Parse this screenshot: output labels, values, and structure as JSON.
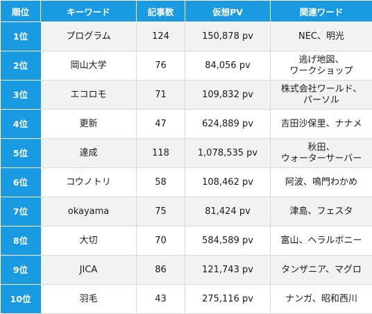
{
  "header": {
    "rank": "順位",
    "keyword": "キーワード",
    "count": "記事数",
    "pv": "仮想PV",
    "related": "関連ワード"
  },
  "rows": [
    {
      "rank": "1位",
      "keyword": "プログラム",
      "count": "124",
      "pv": "150,878 pv",
      "related": "NEC、明光"
    },
    {
      "rank": "2位",
      "keyword": "岡山大学",
      "count": "76",
      "pv": "84,056 pv",
      "related": "逃げ地図、\nワークショップ"
    },
    {
      "rank": "3位",
      "keyword": "エコロモ",
      "count": "71",
      "pv": "109,832 pv",
      "related": "株式会社ワールド、\nパーソル"
    },
    {
      "rank": "4位",
      "keyword": "更新",
      "count": "47",
      "pv": "624,889 pv",
      "related": "吉田沙保里、ナナメ"
    },
    {
      "rank": "5位",
      "keyword": "達成",
      "count": "118",
      "pv": "1,078,535 pv",
      "related": "秋田、\nウォーターサーバー"
    },
    {
      "rank": "6位",
      "keyword": "コウノトリ",
      "count": "58",
      "pv": "108,462 pv",
      "related": "阿波、鳴門わかめ"
    },
    {
      "rank": "7位",
      "keyword": "okayama",
      "count": "75",
      "pv": "81,424 pv",
      "related": "津島、フェスタ"
    },
    {
      "rank": "8位",
      "keyword": "大切",
      "count": "70",
      "pv": "584,589 pv",
      "related": "富山、ヘラルボニー"
    },
    {
      "rank": "9位",
      "keyword": "JICA",
      "count": "86",
      "pv": "121,743 pv",
      "related": "タンザニア、マグロ"
    },
    {
      "rank": "10位",
      "keyword": "羽毛",
      "count": "43",
      "pv": "275,116 pv",
      "related": "ナンガ、昭和西川"
    }
  ]
}
